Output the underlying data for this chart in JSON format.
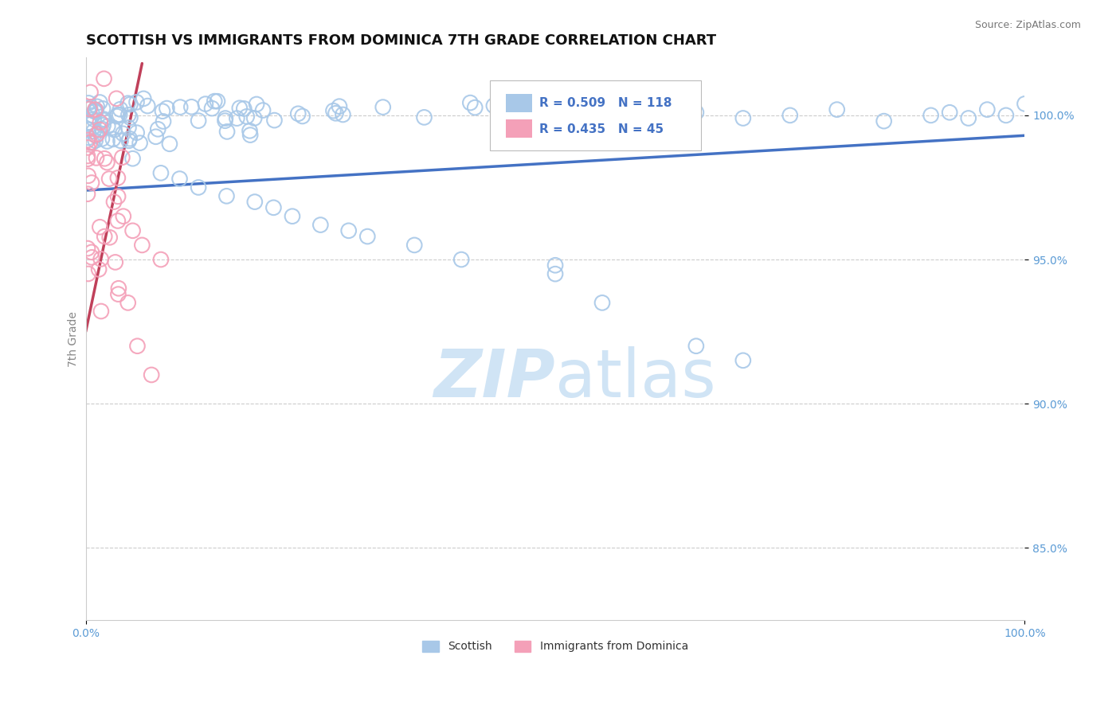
{
  "title": "SCOTTISH VS IMMIGRANTS FROM DOMINICA 7TH GRADE CORRELATION CHART",
  "source": "Source: ZipAtlas.com",
  "xlabel": "",
  "ylabel": "7th Grade",
  "xlim": [
    0.0,
    100.0
  ],
  "ylim": [
    82.5,
    102.0
  ],
  "ytick_vals": [
    85.0,
    90.0,
    95.0,
    100.0
  ],
  "xtick_vals": [
    0.0,
    100.0
  ],
  "xtick_labels": [
    "0.0%",
    "100.0%"
  ],
  "blue_color": "#A8C8E8",
  "pink_color": "#F4A0B8",
  "blue_line_color": "#4472C4",
  "pink_line_color": "#C0405A",
  "tick_color": "#5B9BD5",
  "R_blue": 0.509,
  "N_blue": 118,
  "R_pink": 0.435,
  "N_pink": 45,
  "background_color": "#FFFFFF",
  "grid_color": "#CCCCCC",
  "watermark_color": "#D0E4F5",
  "blue_trendline_x": [
    0.0,
    100.0
  ],
  "blue_trendline_y": [
    97.4,
    99.3
  ],
  "pink_trendline_x": [
    0.0,
    6.0
  ],
  "pink_trendline_y": [
    92.5,
    101.8
  ],
  "title_fontsize": 13,
  "source_fontsize": 9,
  "ylabel_fontsize": 10,
  "tick_fontsize": 10,
  "legend_fontsize": 11
}
